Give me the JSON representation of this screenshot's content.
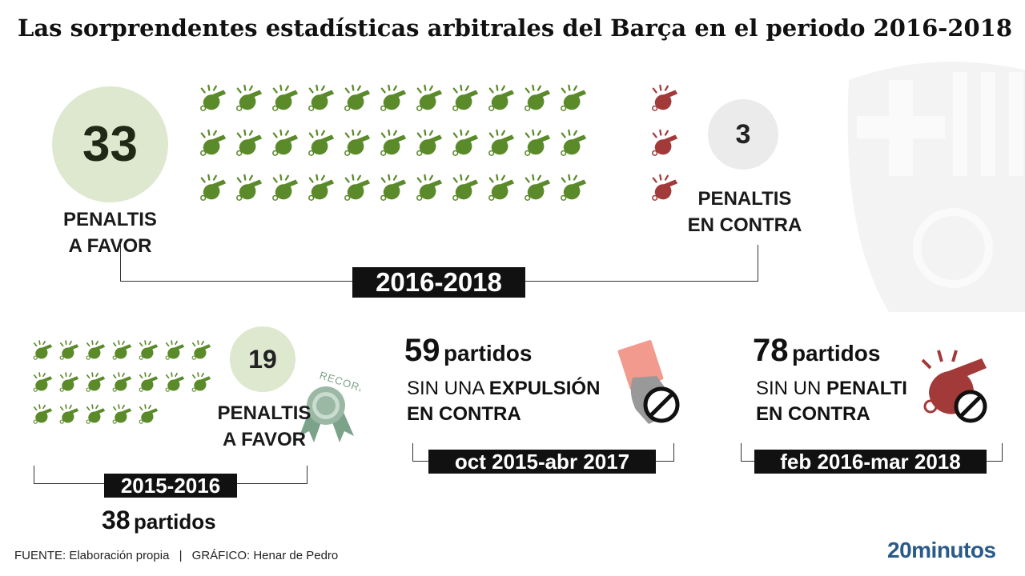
{
  "title": "Las sorprendentes estadísticas arbitrales del Barça en el periodo 2016-2018",
  "colors": {
    "favor": "#5b8a2a",
    "contra": "#a33a3a",
    "circle_favor": "#dde8cf",
    "circle_contra": "#ebebeb",
    "red_card": "#f39a8e"
  },
  "top": {
    "favor_count": "33",
    "favor_label_1": "PENALTIS",
    "favor_label_2": "A FAVOR",
    "contra_count": "3",
    "contra_label_1": "PENALTIS",
    "contra_label_2": "EN CONTRA",
    "period": "2016-2018",
    "favor_icons": 33,
    "contra_icons": 3
  },
  "season": {
    "count": "19",
    "label_1": "PENALTIS",
    "label_2": "A FAVOR",
    "badge": "RECORD",
    "period": "2015-2016",
    "matches_num": "38",
    "matches_word": "partidos",
    "icons": 19
  },
  "expulsion": {
    "num": "59",
    "word": "partidos",
    "line1_pre": "SIN UNA ",
    "line1_bold": "EXPULSIÓN",
    "line2": "EN CONTRA",
    "period": "oct 2015-abr 2017"
  },
  "penalty": {
    "num": "78",
    "word": "partidos",
    "line1_pre": "SIN UN ",
    "line1_bold": "PENALTI",
    "line2": "EN CONTRA",
    "period": "feb 2016-mar 2018"
  },
  "footer": {
    "source": "FUENTE: Elaboración propia",
    "separator": "|",
    "graphic": "GRÁFICO: Henar de Pedro"
  },
  "logo": "20minutos"
}
